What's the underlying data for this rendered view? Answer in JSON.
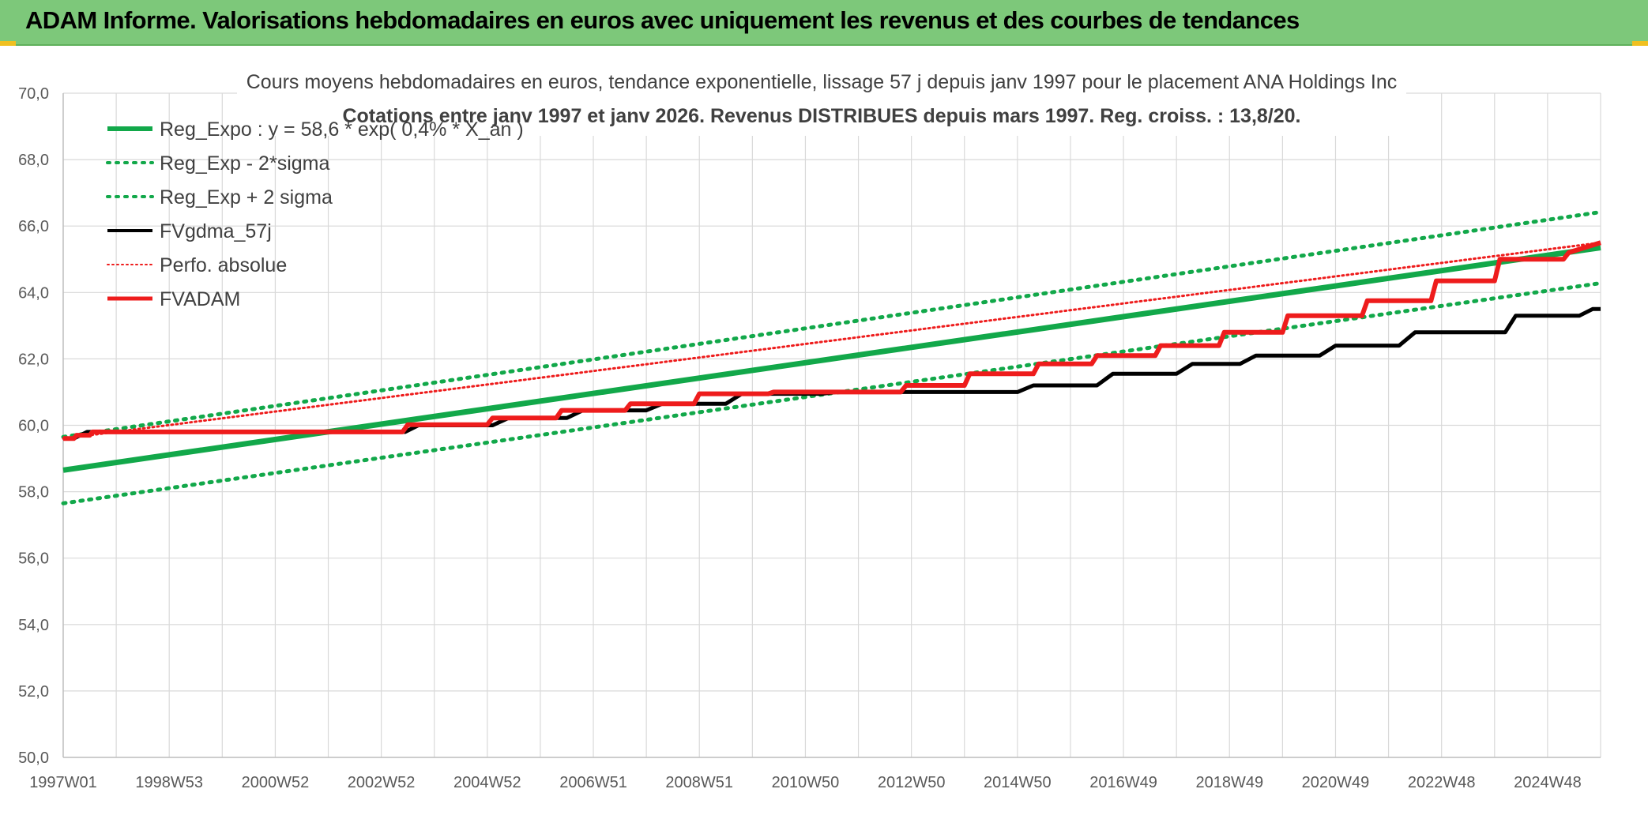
{
  "header": {
    "title": "ADAM Informe. Valorisations hebdomadaires en euros avec uniquement les revenus et des courbes de tendances"
  },
  "colors": {
    "banner": "#7dc87a",
    "green": "#12a84a",
    "black": "#000000",
    "red": "#ee1c1c",
    "grid": "#d9d9d9"
  },
  "chart_data": {
    "type": "line",
    "title": "Cours moyens hebdomadaires en euros, tendance exponentielle, lissage 57 j depuis janv 1997 pour le placement ANA Holdings Inc",
    "subtitle": "Cotations entre janv 1997 et janv 2026. Revenus DISTRIBUES depuis mars 1997. Reg. croiss. : 13,8/20.",
    "xlabel": "",
    "ylabel": "",
    "ylim": [
      50,
      70
    ],
    "y_ticks": [
      "50,0",
      "52,0",
      "54,0",
      "56,0",
      "58,0",
      "60,0",
      "62,0",
      "64,0",
      "66,0",
      "68,0",
      "70,0"
    ],
    "x_range": [
      1997.0,
      2026.0
    ],
    "x_ticks": [
      {
        "label": "1997W01",
        "x": 1997.0
      },
      {
        "label": "1998W53",
        "x": 1999.0
      },
      {
        "label": "2000W52",
        "x": 2001.0
      },
      {
        "label": "2002W52",
        "x": 2003.0
      },
      {
        "label": "2004W52",
        "x": 2005.0
      },
      {
        "label": "2006W51",
        "x": 2007.0
      },
      {
        "label": "2008W51",
        "x": 2009.0
      },
      {
        "label": "2010W50",
        "x": 2011.0
      },
      {
        "label": "2012W50",
        "x": 2013.0
      },
      {
        "label": "2014W50",
        "x": 2015.0
      },
      {
        "label": "2016W49",
        "x": 2017.0
      },
      {
        "label": "2018W49",
        "x": 2019.0
      },
      {
        "label": "2020W49",
        "x": 2021.0
      },
      {
        "label": "2022W48",
        "x": 2023.0
      },
      {
        "label": "2024W48",
        "x": 2025.0
      }
    ],
    "grid": true,
    "legend_position": "top-left",
    "series": [
      {
        "name": "Reg_Expo : y = 58,6 * exp( 0,4% *  X_an )",
        "style": "solid-green",
        "x": [
          1997.0,
          2026.0
        ],
        "y": [
          58.65,
          65.35
        ]
      },
      {
        "name": "Reg_Exp - 2*sigma",
        "style": "dotted-green",
        "x": [
          1997.0,
          2026.0
        ],
        "y": [
          57.65,
          64.28
        ]
      },
      {
        "name": "Reg_Exp + 2 sigma",
        "style": "dotted-green",
        "x": [
          1997.0,
          2026.0
        ],
        "y": [
          59.65,
          66.42
        ]
      },
      {
        "name": "FVgdma_57j",
        "style": "solid-black",
        "x": [
          1997.0,
          1997.2,
          1997.45,
          2003.45,
          2003.7,
          2005.1,
          2005.4,
          2006.5,
          2006.8,
          2008.0,
          2008.3,
          2009.5,
          2009.8,
          2011.3,
          2011.6,
          2013.3,
          2013.6,
          2015.0,
          2015.3,
          2016.5,
          2016.8,
          2018.0,
          2018.3,
          2019.2,
          2019.5,
          2020.7,
          2021.0,
          2022.2,
          2022.5,
          2024.2,
          2024.4,
          2025.6,
          2025.85,
          2026.0
        ],
        "y": [
          59.6,
          59.6,
          59.8,
          59.8,
          60.0,
          60.0,
          60.22,
          60.22,
          60.45,
          60.45,
          60.65,
          60.65,
          60.95,
          60.95,
          61.0,
          61.0,
          61.0,
          61.0,
          61.2,
          61.2,
          61.55,
          61.55,
          61.85,
          61.85,
          62.1,
          62.1,
          62.4,
          62.4,
          62.8,
          62.8,
          63.3,
          63.3,
          63.5,
          63.5
        ]
      },
      {
        "name": "Perfo. absolue",
        "style": "dotted-red",
        "x": [
          1997.0,
          2026.0
        ],
        "y": [
          59.6,
          65.5
        ]
      },
      {
        "name": "FVADAM",
        "style": "solid-red",
        "x": [
          1997.0,
          1997.2,
          1997.25,
          1997.5,
          1997.55,
          2003.4,
          2003.5,
          2005.0,
          2005.1,
          2006.3,
          2006.4,
          2007.6,
          2007.7,
          2008.9,
          2009.0,
          2010.3,
          2010.4,
          2011.5,
          2011.6,
          2012.8,
          2012.9,
          2014.0,
          2014.1,
          2015.3,
          2015.4,
          2016.4,
          2016.5,
          2017.6,
          2017.7,
          2018.8,
          2018.9,
          2020.0,
          2020.1,
          2021.5,
          2021.6,
          2022.8,
          2022.9,
          2024.0,
          2024.1,
          2025.3,
          2025.4,
          2026.0
        ],
        "y": [
          59.6,
          59.6,
          59.7,
          59.7,
          59.8,
          59.8,
          60.02,
          60.02,
          60.22,
          60.22,
          60.45,
          60.45,
          60.65,
          60.65,
          60.95,
          60.95,
          61.0,
          61.0,
          61.0,
          61.0,
          61.2,
          61.2,
          61.55,
          61.55,
          61.85,
          61.85,
          62.1,
          62.1,
          62.4,
          62.4,
          62.8,
          62.8,
          63.3,
          63.3,
          63.75,
          63.75,
          64.35,
          64.35,
          65.0,
          65.0,
          65.2,
          65.5
        ]
      }
    ]
  }
}
